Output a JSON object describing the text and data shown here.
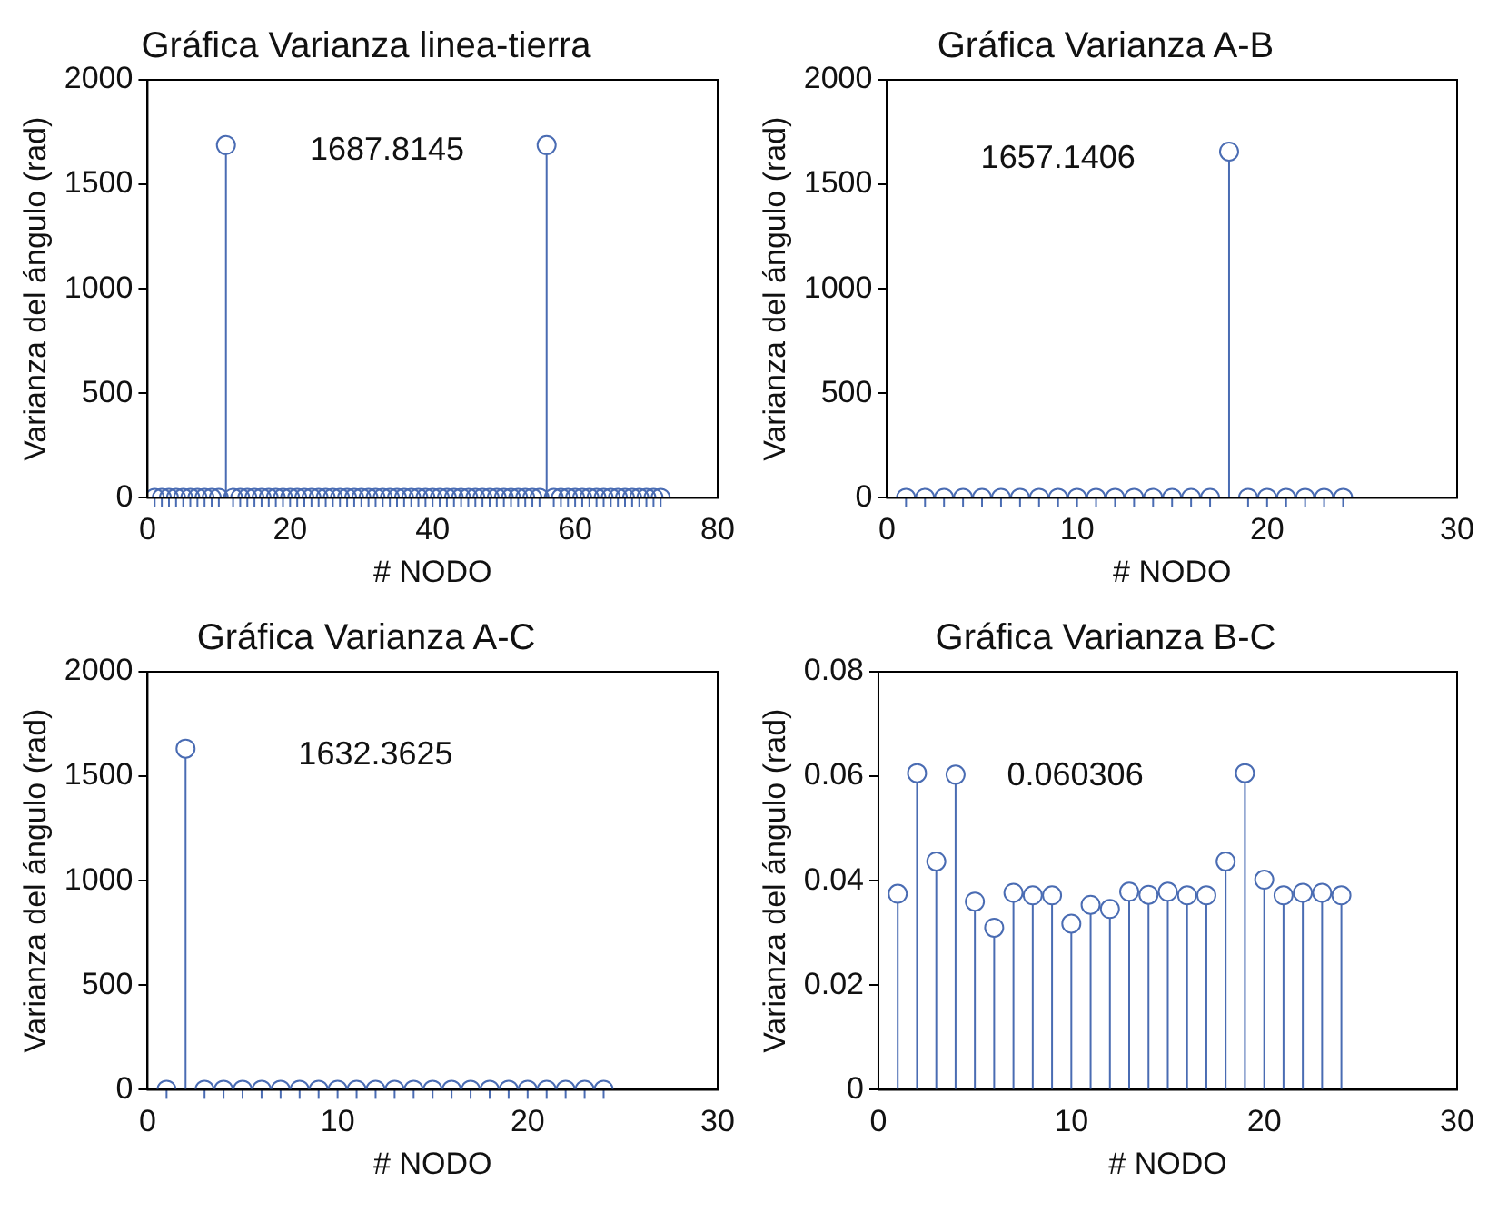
{
  "chart_data": [
    {
      "type": "lollipop",
      "title": "Gráfica Varianza linea-tierra",
      "xlabel": "# NODO",
      "ylabel": "Varianza del ángulo (rad)",
      "annotations": [
        "1687.8145"
      ],
      "marker": "circle",
      "grid": false,
      "xlim": [
        0,
        80
      ],
      "xticks": [
        0,
        20,
        40,
        60,
        80
      ],
      "ylim": [
        0,
        2000
      ],
      "yticks": [
        0,
        500,
        1000,
        1500,
        2000
      ],
      "x": [
        1,
        2,
        3,
        4,
        5,
        6,
        7,
        8,
        9,
        10,
        11,
        12,
        13,
        14,
        15,
        16,
        17,
        18,
        19,
        20,
        21,
        22,
        23,
        24,
        25,
        26,
        27,
        28,
        29,
        30,
        31,
        32,
        33,
        34,
        35,
        36,
        37,
        38,
        39,
        40,
        41,
        42,
        43,
        44,
        45,
        46,
        47,
        48,
        49,
        50,
        51,
        52,
        53,
        54,
        55,
        56,
        57,
        58,
        59,
        60,
        61,
        62,
        63,
        64,
        65,
        66,
        67,
        68,
        69,
        70,
        71,
        72
      ],
      "series": [
        {
          "color": "#4a6cb3",
          "values": [
            0,
            0,
            0,
            0,
            0,
            0,
            0,
            0,
            0,
            0,
            1687.8145,
            0,
            0,
            0,
            0,
            0,
            0,
            0,
            0,
            0,
            0,
            0,
            0,
            0,
            0,
            0,
            0,
            0,
            0,
            0,
            0,
            0,
            0,
            0,
            0,
            0,
            0,
            0,
            0,
            0,
            0,
            0,
            0,
            0,
            0,
            0,
            0,
            0,
            0,
            0,
            0,
            0,
            0,
            0,
            0,
            1687.8145,
            0,
            0,
            0,
            0,
            0,
            0,
            0,
            0,
            0,
            0,
            0,
            0,
            0,
            0,
            0,
            0
          ]
        }
      ]
    },
    {
      "type": "lollipop",
      "title": "Gráfica Varianza A-B",
      "xlabel": "# NODO",
      "ylabel": "Varianza del ángulo (rad)",
      "annotations": [
        "1657.1406"
      ],
      "marker": "circle",
      "grid": false,
      "xlim": [
        0,
        30
      ],
      "xticks": [
        0,
        10,
        20,
        30
      ],
      "ylim": [
        0,
        2000
      ],
      "yticks": [
        0,
        500,
        1000,
        1500,
        2000
      ],
      "x": [
        1,
        2,
        3,
        4,
        5,
        6,
        7,
        8,
        9,
        10,
        11,
        12,
        13,
        14,
        15,
        16,
        17,
        18,
        19,
        20,
        21,
        22,
        23,
        24
      ],
      "series": [
        {
          "color": "#4a6cb3",
          "values": [
            0,
            0,
            0,
            0,
            0,
            0,
            0,
            0,
            0,
            0,
            0,
            0,
            0,
            0,
            0,
            0,
            0,
            1657.1406,
            0,
            0,
            0,
            0,
            0,
            0
          ]
        }
      ]
    },
    {
      "type": "lollipop",
      "title": "Gráfica Varianza A-C",
      "xlabel": "# NODO",
      "ylabel": "Varianza del ángulo (rad)",
      "annotations": [
        "1632.3625"
      ],
      "marker": "circle",
      "grid": false,
      "xlim": [
        0,
        30
      ],
      "xticks": [
        0,
        10,
        20,
        30
      ],
      "ylim": [
        0,
        2000
      ],
      "yticks": [
        0,
        500,
        1000,
        1500,
        2000
      ],
      "x": [
        1,
        2,
        3,
        4,
        5,
        6,
        7,
        8,
        9,
        10,
        11,
        12,
        13,
        14,
        15,
        16,
        17,
        18,
        19,
        20,
        21,
        22,
        23,
        24
      ],
      "series": [
        {
          "color": "#4a6cb3",
          "values": [
            0,
            1632.3625,
            0,
            0,
            0,
            0,
            0,
            0,
            0,
            0,
            0,
            0,
            0,
            0,
            0,
            0,
            0,
            0,
            0,
            0,
            0,
            0,
            0,
            0
          ]
        }
      ]
    },
    {
      "type": "lollipop",
      "title": "Gráfica Varianza B-C",
      "xlabel": "# NODO",
      "ylabel": "Varianza del ángulo (rad)",
      "annotations": [
        "0.060306"
      ],
      "marker": "circle",
      "grid": false,
      "xlim": [
        0,
        30
      ],
      "xticks": [
        0,
        10,
        20,
        30
      ],
      "ylim": [
        0,
        0.08
      ],
      "yticks": [
        0,
        0.02,
        0.04,
        0.06,
        0.08
      ],
      "x": [
        1,
        2,
        3,
        4,
        5,
        6,
        7,
        8,
        9,
        10,
        11,
        12,
        13,
        14,
        15,
        16,
        17,
        18,
        19,
        20,
        21,
        22,
        23,
        24
      ],
      "series": [
        {
          "color": "#4a6cb3",
          "values": [
            0.0375,
            0.0606,
            0.0437,
            0.0603,
            0.036,
            0.031,
            0.0377,
            0.0372,
            0.0372,
            0.0318,
            0.0354,
            0.0346,
            0.0379,
            0.0373,
            0.0379,
            0.0372,
            0.0372,
            0.0437,
            0.0606,
            0.0402,
            0.0372,
            0.0377,
            0.0377,
            0.0372
          ]
        }
      ]
    }
  ]
}
